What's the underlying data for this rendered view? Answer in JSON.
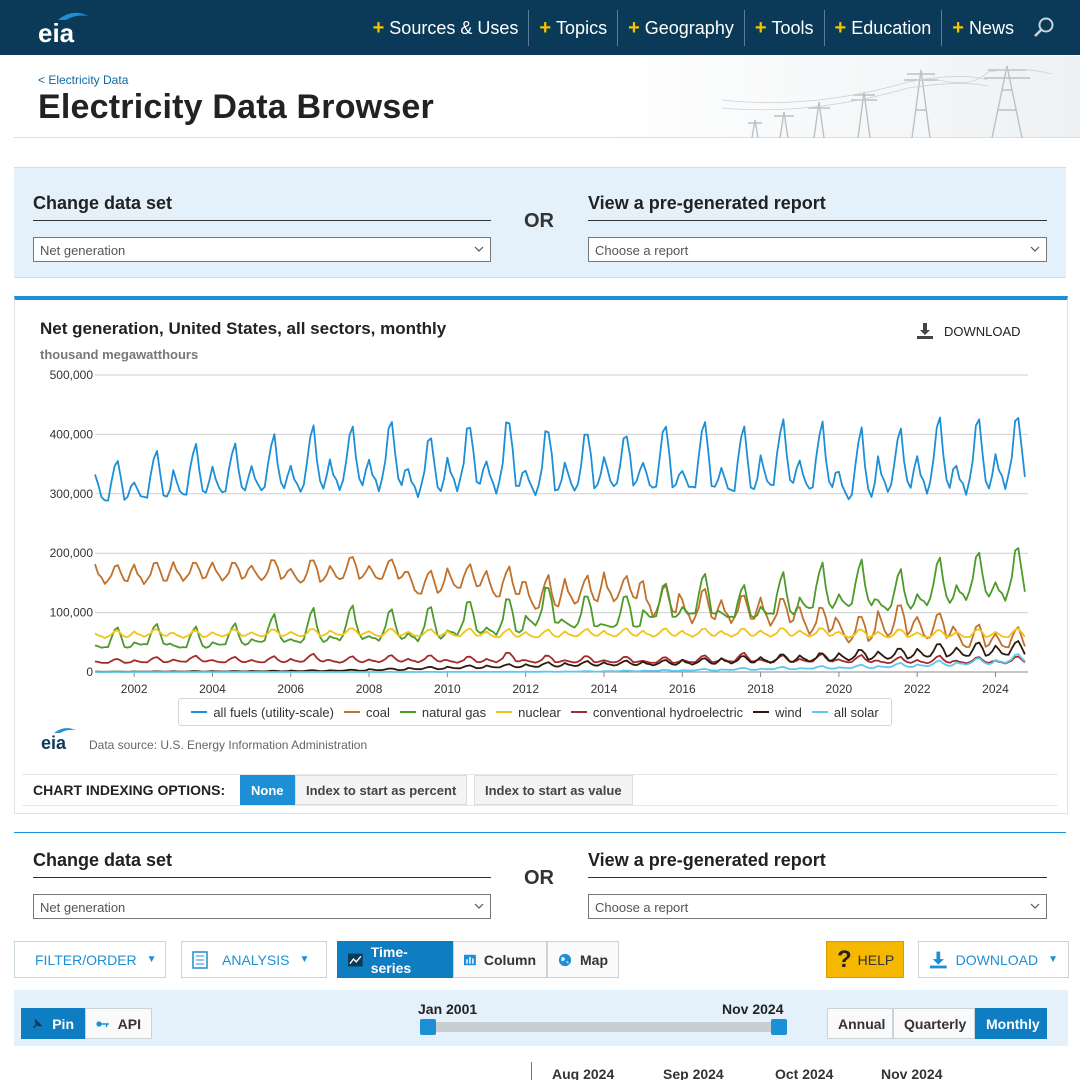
{
  "nav": {
    "logo_text": "eia",
    "items": [
      {
        "label": "Sources & Uses"
      },
      {
        "label": "Topics"
      },
      {
        "label": "Geography"
      },
      {
        "label": "Tools"
      },
      {
        "label": "Education"
      },
      {
        "label": "News"
      }
    ]
  },
  "header": {
    "breadcrumb": "< Electricity Data",
    "title": "Electricity Data Browser"
  },
  "selector_top": {
    "change_heading": "Change data set",
    "change_value": "Net generation",
    "or_text": "OR",
    "report_heading": "View a pre-generated report",
    "report_placeholder": "Choose a report"
  },
  "selector_bottom": {
    "change_heading": "Change data set",
    "change_value": "Net generation",
    "or_text": "OR",
    "report_heading": "View a pre-generated report",
    "report_placeholder": "Choose a report"
  },
  "chart_panel": {
    "download_label": "DOWNLOAD",
    "source_text": "Data source: U.S. Energy Information Administration",
    "logo_text": "eia"
  },
  "chart_data": {
    "type": "line",
    "title": "Net generation, United States, all sectors, monthly",
    "ylabel": "thousand megawatthours",
    "ylim": [
      0,
      500000
    ],
    "yticks": [
      "0",
      "100,000",
      "200,000",
      "300,000",
      "400,000",
      "500,000"
    ],
    "ytick_values": [
      0,
      100000,
      200000,
      300000,
      400000,
      500000
    ],
    "xlim": [
      2001.0,
      2024.83
    ],
    "xticks": [
      2002,
      2004,
      2006,
      2008,
      2010,
      2012,
      2014,
      2016,
      2018,
      2020,
      2022,
      2024
    ],
    "grid": true,
    "legend_position": "bottom",
    "series_style": "monthly seasonal (peaks in Jul/Aug and Jan); yearly points below give min / winter peak / summer peak in thousand MWh",
    "series": [
      {
        "name": "all fuels (utility-scale)",
        "color": "#1d8fd6",
        "years": [
          2001,
          2002,
          2003,
          2004,
          2005,
          2006,
          2007,
          2008,
          2009,
          2010,
          2011,
          2012,
          2013,
          2014,
          2015,
          2016,
          2017,
          2018,
          2019,
          2020,
          2021,
          2022,
          2023,
          2024
        ],
        "low": [
          285000,
          290000,
          295000,
          300000,
          305000,
          305000,
          310000,
          310000,
          300000,
          310000,
          305000,
          300000,
          305000,
          310000,
          305000,
          305000,
          300000,
          310000,
          305000,
          290000,
          305000,
          305000,
          305000,
          315000
        ],
        "winter": [
          335000,
          320000,
          340000,
          345000,
          345000,
          345000,
          355000,
          355000,
          340000,
          360000,
          355000,
          340000,
          355000,
          365000,
          355000,
          340000,
          345000,
          365000,
          355000,
          335000,
          360000,
          360000,
          345000,
          365000
        ],
        "summer": [
          355000,
          370000,
          380000,
          380000,
          395000,
          410000,
          410000,
          420000,
          395000,
          415000,
          425000,
          410000,
          405000,
          400000,
          415000,
          420000,
          410000,
          420000,
          415000,
          405000,
          405000,
          425000,
          425000,
          430000
        ]
      },
      {
        "name": "coal",
        "color": "#c0712b",
        "years": [
          2001,
          2002,
          2003,
          2004,
          2005,
          2006,
          2007,
          2008,
          2009,
          2010,
          2011,
          2012,
          2013,
          2014,
          2015,
          2016,
          2017,
          2018,
          2019,
          2020,
          2021,
          2022,
          2023,
          2024
        ],
        "low": [
          150000,
          150000,
          155000,
          155000,
          155000,
          150000,
          155000,
          155000,
          130000,
          140000,
          125000,
          105000,
          115000,
          120000,
          95000,
          85000,
          85000,
          80000,
          65000,
          50000,
          60000,
          55000,
          40000,
          40000
        ],
        "winter": [
          180000,
          180000,
          185000,
          185000,
          180000,
          175000,
          180000,
          180000,
          170000,
          175000,
          170000,
          150000,
          155000,
          165000,
          150000,
          120000,
          120000,
          125000,
          110000,
          85000,
          105000,
          95000,
          70000,
          65000
        ],
        "summer": [
          180000,
          185000,
          185000,
          185000,
          190000,
          190000,
          195000,
          190000,
          170000,
          180000,
          175000,
          160000,
          160000,
          160000,
          145000,
          140000,
          130000,
          125000,
          110000,
          95000,
          115000,
          100000,
          80000,
          75000
        ]
      },
      {
        "name": "natural gas",
        "color": "#4c9a2a",
        "years": [
          2001,
          2002,
          2003,
          2004,
          2005,
          2006,
          2007,
          2008,
          2009,
          2010,
          2011,
          2012,
          2013,
          2014,
          2015,
          2016,
          2017,
          2018,
          2019,
          2020,
          2021,
          2022,
          2023,
          2024
        ],
        "low": [
          40000,
          45000,
          40000,
          45000,
          50000,
          50000,
          55000,
          55000,
          55000,
          65000,
          65000,
          80000,
          75000,
          75000,
          90000,
          95000,
          90000,
          95000,
          105000,
          110000,
          105000,
          115000,
          125000,
          125000
        ],
        "winter": [
          45000,
          50000,
          45000,
          50000,
          55000,
          55000,
          60000,
          60000,
          65000,
          70000,
          75000,
          95000,
          85000,
          80000,
          105000,
          110000,
          100000,
          110000,
          125000,
          130000,
          120000,
          130000,
          145000,
          150000
        ],
        "summer": [
          75000,
          80000,
          75000,
          80000,
          95000,
          105000,
          110000,
          105000,
          110000,
          120000,
          125000,
          145000,
          130000,
          130000,
          150000,
          165000,
          145000,
          165000,
          180000,
          185000,
          170000,
          190000,
          200000,
          210000
        ]
      },
      {
        "name": "nuclear",
        "color": "#f0c419",
        "years": [
          2001,
          2002,
          2003,
          2004,
          2005,
          2006,
          2007,
          2008,
          2009,
          2010,
          2011,
          2012,
          2013,
          2014,
          2015,
          2016,
          2017,
          2018,
          2019,
          2020,
          2021,
          2022,
          2023,
          2024
        ],
        "low": [
          58000,
          60000,
          58000,
          60000,
          60000,
          60000,
          62000,
          60000,
          60000,
          60000,
          58000,
          58000,
          60000,
          60000,
          60000,
          60000,
          60000,
          60000,
          60000,
          58000,
          58000,
          58000,
          58000,
          58000
        ],
        "winter": [
          65000,
          68000,
          66000,
          67000,
          67000,
          68000,
          70000,
          69000,
          68000,
          69000,
          68000,
          67000,
          68000,
          69000,
          69000,
          69000,
          69000,
          70000,
          70000,
          68000,
          68000,
          67000,
          68000,
          68000
        ],
        "summer": [
          70000,
          72000,
          70000,
          72000,
          72000,
          73000,
          74000,
          73000,
          72000,
          73000,
          72000,
          71000,
          72000,
          73000,
          73000,
          73000,
          73000,
          74000,
          74000,
          72000,
          72000,
          71000,
          72000,
          73000
        ]
      },
      {
        "name": "conventional hydroelectric",
        "color": "#a52a2a",
        "years": [
          2001,
          2002,
          2003,
          2004,
          2005,
          2006,
          2007,
          2008,
          2009,
          2010,
          2011,
          2012,
          2013,
          2014,
          2015,
          2016,
          2017,
          2018,
          2019,
          2020,
          2021,
          2022,
          2023,
          2024
        ],
        "low": [
          15000,
          16000,
          17000,
          16000,
          16000,
          17000,
          16000,
          17000,
          17000,
          16000,
          17000,
          16000,
          16000,
          16000,
          15000,
          16000,
          17000,
          16000,
          17000,
          16000,
          15000,
          15000,
          15000,
          15000
        ],
        "winter": [
          18000,
          20000,
          21000,
          20000,
          20000,
          22000,
          20000,
          21000,
          22000,
          20000,
          22000,
          20000,
          20000,
          20000,
          19000,
          21000,
          23000,
          21000,
          22000,
          21000,
          19000,
          20000,
          19000,
          19000
        ],
        "summer": [
          22000,
          25000,
          27000,
          25000,
          26000,
          30000,
          26000,
          28000,
          28000,
          26000,
          33000,
          28000,
          27000,
          26000,
          25000,
          28000,
          32000,
          28000,
          30000,
          28000,
          25000,
          27000,
          25000,
          26000
        ]
      },
      {
        "name": "wind",
        "color": "#2b1a0f",
        "years": [
          2001,
          2002,
          2003,
          2004,
          2005,
          2006,
          2007,
          2008,
          2009,
          2010,
          2011,
          2012,
          2013,
          2014,
          2015,
          2016,
          2017,
          2018,
          2019,
          2020,
          2021,
          2022,
          2023,
          2024
        ],
        "low": [
          300,
          500,
          700,
          800,
          1000,
          1500,
          2000,
          3000,
          4500,
          6000,
          7500,
          8500,
          10000,
          11000,
          11500,
          13000,
          15000,
          16000,
          18000,
          20000,
          22000,
          25000,
          26000,
          28000
        ],
        "winter": [
          600,
          900,
          1100,
          1300,
          1700,
          2500,
          3000,
          5000,
          7000,
          9000,
          11000,
          13000,
          15000,
          16000,
          17000,
          20000,
          23000,
          25000,
          28000,
          32000,
          35000,
          40000,
          42000,
          45000
        ],
        "summer": [
          700,
          1100,
          1300,
          1500,
          2100,
          3000,
          3800,
          6000,
          8500,
          11000,
          13000,
          16000,
          18000,
          19000,
          20000,
          23000,
          27000,
          30000,
          32000,
          38000,
          40000,
          48000,
          50000,
          52000
        ]
      },
      {
        "name": "all solar",
        "color": "#5bc8f0",
        "years": [
          2001,
          2002,
          2003,
          2004,
          2005,
          2006,
          2007,
          2008,
          2009,
          2010,
          2011,
          2012,
          2013,
          2014,
          2015,
          2016,
          2017,
          2018,
          2019,
          2020,
          2021,
          2022,
          2023,
          2024
        ],
        "low": [
          20,
          20,
          20,
          20,
          20,
          20,
          30,
          50,
          70,
          100,
          200,
          300,
          700,
          1200,
          1800,
          2500,
          3500,
          4500,
          5500,
          6500,
          8000,
          10000,
          13000,
          16000
        ],
        "winter": [
          30,
          30,
          30,
          30,
          30,
          30,
          40,
          60,
          90,
          130,
          250,
          450,
          900,
          1500,
          2200,
          3000,
          4200,
          5500,
          6500,
          8000,
          10000,
          12500,
          16000,
          20000
        ],
        "summer": [
          60,
          60,
          60,
          60,
          60,
          60,
          80,
          110,
          150,
          200,
          400,
          700,
          1600,
          2500,
          3500,
          5000,
          7000,
          8500,
          10000,
          12000,
          15000,
          19000,
          23000,
          30000
        ]
      }
    ]
  },
  "indexing": {
    "label": "CHART INDEXING OPTIONS:",
    "options": [
      {
        "label": "None",
        "active": true
      },
      {
        "label": "Index to start as percent",
        "active": false
      },
      {
        "label": "Index to start as value",
        "active": false
      }
    ]
  },
  "toolbar": {
    "filter_label": "FILTER/ORDER",
    "analysis_label": "ANALYSIS",
    "timeseries_label": "Time-series",
    "column_label": "Column",
    "map_label": "Map",
    "help_label": "HELP",
    "download_label": "DOWNLOAD"
  },
  "timeline": {
    "pin_label": "Pin",
    "api_label": "API",
    "start_label": "Jan 2001",
    "end_label": "Nov 2024",
    "annual_label": "Annual",
    "quarterly_label": "Quarterly",
    "monthly_label": "Monthly"
  },
  "months": [
    "Aug 2024",
    "Sep 2024",
    "Oct 2024",
    "Nov 2024"
  ]
}
